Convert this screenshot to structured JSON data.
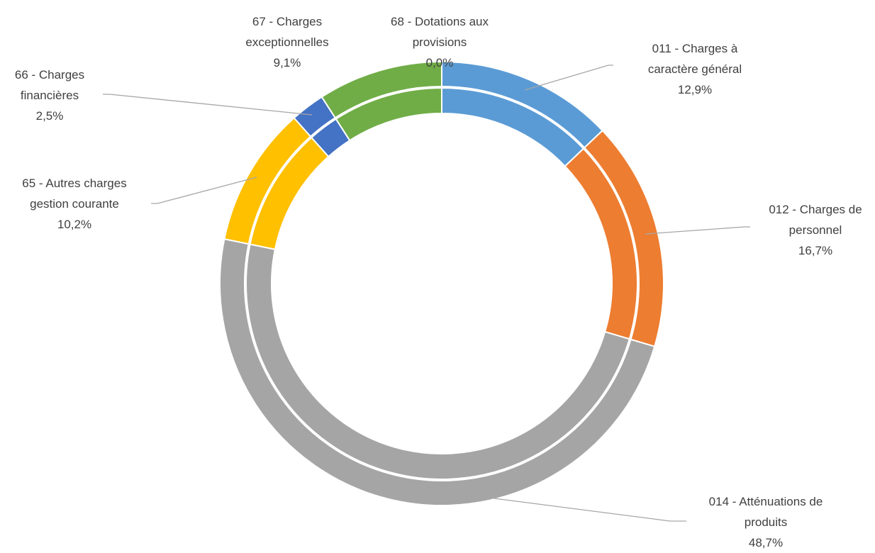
{
  "chart_data": {
    "type": "doughnut",
    "categories": [
      "011 - Charges à caractère général",
      "012 - Charges de personnel",
      "014 - Atténuations de produits",
      "65 - Autres charges gestion courante",
      "66 - Charges financières",
      "67 - Charges exceptionnelles",
      "68 - Dotations aux provisions"
    ],
    "values": [
      12.9,
      16.7,
      48.7,
      10.2,
      2.5,
      9.1,
      0.0
    ],
    "value_labels": [
      "12,9%",
      "16,7%",
      "48,7%",
      "10,2%",
      "2,5%",
      "9,1%",
      "0,0%"
    ],
    "colors": [
      "#5b9bd5",
      "#ed7d31",
      "#a5a5a5",
      "#ffc000",
      "#4472c4",
      "#70ad47",
      "#264478"
    ]
  }
}
